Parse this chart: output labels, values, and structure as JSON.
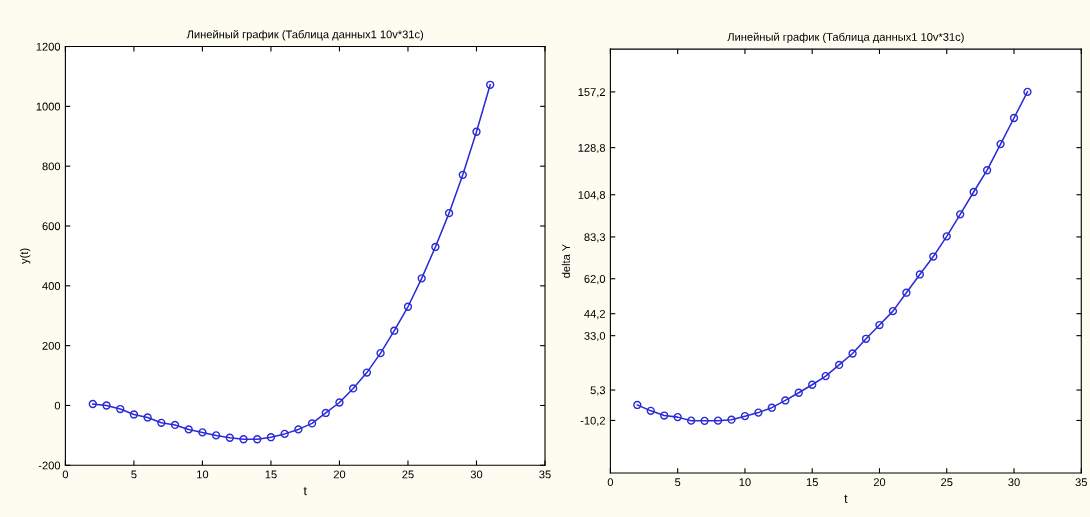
{
  "chart_data": [
    {
      "type": "line",
      "title": "Линейный график (Таблица данных1 10v*31c)",
      "xlabel": "t",
      "ylabel": "y(t)",
      "x": [
        2,
        3,
        4,
        5,
        6,
        7,
        8,
        9,
        10,
        11,
        12,
        13,
        14,
        15,
        16,
        17,
        18,
        19,
        20,
        21,
        22,
        23,
        24,
        25,
        26,
        27,
        28,
        29,
        30,
        31
      ],
      "series": [
        {
          "color": "#2a2ad8",
          "values": [
            5,
            0,
            -12,
            -30,
            -40,
            -58,
            -65,
            -80,
            -90,
            -100,
            -108,
            -113,
            -113,
            -106,
            -95,
            -80,
            -60,
            -25,
            10,
            57,
            110,
            175,
            250,
            330,
            425,
            530,
            643,
            771,
            915,
            1072
          ]
        }
      ],
      "xlim": [
        0,
        35
      ],
      "xticks": [
        0,
        5,
        10,
        15,
        20,
        25,
        30,
        35
      ],
      "ylim": [
        -200,
        1200
      ],
      "yticks": [
        -200,
        0,
        200,
        400,
        600,
        800,
        1000,
        1200
      ],
      "marker": "circle",
      "line_style": "solid",
      "grid": false,
      "legend": false
    },
    {
      "type": "line",
      "title": "Линейный график (Таблица данных1 10v*31c)",
      "xlabel": "t",
      "ylabel": "delta Y",
      "x": [
        2,
        3,
        4,
        5,
        6,
        7,
        8,
        9,
        10,
        11,
        12,
        13,
        14,
        15,
        16,
        17,
        18,
        19,
        20,
        21,
        22,
        23,
        24,
        25,
        26,
        27,
        28,
        29,
        30,
        31
      ],
      "series": [
        {
          "color": "#2a2ad8",
          "values": [
            -2.3,
            -5.3,
            -7.7,
            -8.5,
            -10.3,
            -10.4,
            -10.3,
            -9.8,
            -8.0,
            -6.2,
            -3.7,
            0.0,
            3.9,
            8.0,
            12.4,
            18.1,
            23.9,
            31.4,
            38.4,
            45.5,
            54.9,
            64.2,
            73.3,
            83.6,
            94.8,
            106.2,
            117.3,
            130.6,
            143.9,
            157.2
          ]
        }
      ],
      "xlim": [
        0,
        35
      ],
      "xticks": [
        0,
        5,
        10,
        15,
        20,
        25,
        30,
        35
      ],
      "ylim": [
        -37,
        179
      ],
      "yticks": [
        {
          "value": -10.2,
          "label": "-10,2"
        },
        {
          "value": 5.3,
          "label": "5,3"
        },
        {
          "value": 33.0,
          "label": "33,0"
        },
        {
          "value": 44.2,
          "label": "44,2"
        },
        {
          "value": 62.0,
          "label": "62,0"
        },
        {
          "value": 83.3,
          "label": "83,3"
        },
        {
          "value": 104.8,
          "label": "104,8"
        },
        {
          "value": 128.8,
          "label": "128,8"
        },
        {
          "value": 157.2,
          "label": "157,2"
        }
      ],
      "marker": "circle",
      "line_style": "solid",
      "grid": false,
      "legend": false
    }
  ]
}
